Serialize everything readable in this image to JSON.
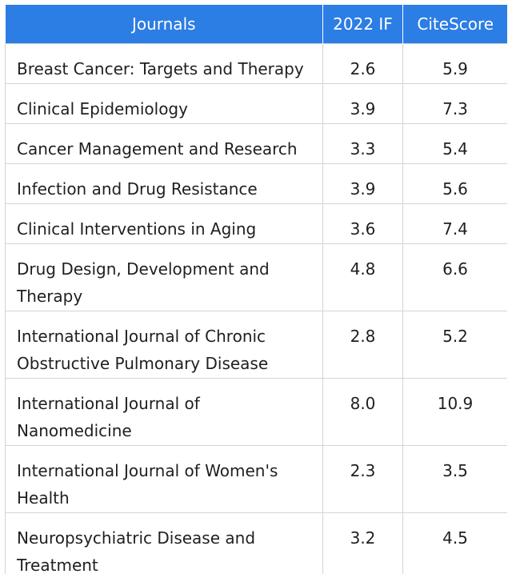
{
  "table": {
    "headers": [
      "Journals",
      "2022 IF",
      "CiteScore"
    ],
    "rows": [
      {
        "journal": "Breast Cancer: Targets and Therapy",
        "if": "2.6",
        "citescore": "5.9"
      },
      {
        "journal": "Clinical Epidemiology",
        "if": "3.9",
        "citescore": "7.3"
      },
      {
        "journal": "Cancer Management and Research",
        "if": "3.3",
        "citescore": "5.4"
      },
      {
        "journal": "Infection and Drug Resistance",
        "if": "3.9",
        "citescore": "5.6"
      },
      {
        "journal": "Clinical Interventions in Aging",
        "if": "3.6",
        "citescore": "7.4"
      },
      {
        "journal": "Drug Design, Development and Therapy",
        "if": "4.8",
        "citescore": "6.6"
      },
      {
        "journal": "International Journal of Chronic Obstructive Pulmonary Disease",
        "if": "2.8",
        "citescore": "5.2"
      },
      {
        "journal": "International Journal of Nanomedicine",
        "if": "8.0",
        "citescore": "10.9"
      },
      {
        "journal": "International Journal of Women's Health",
        "if": "2.3",
        "citescore": "3.5"
      },
      {
        "journal": "Neuropsychiatric Disease and Treatment",
        "if": "3.2",
        "citescore": "4.5"
      }
    ]
  },
  "colors": {
    "header_bg": "#2c7de4",
    "header_text": "#ffffff",
    "grid_line": "#d4d4d4",
    "body_text": "#1f1f1f"
  }
}
